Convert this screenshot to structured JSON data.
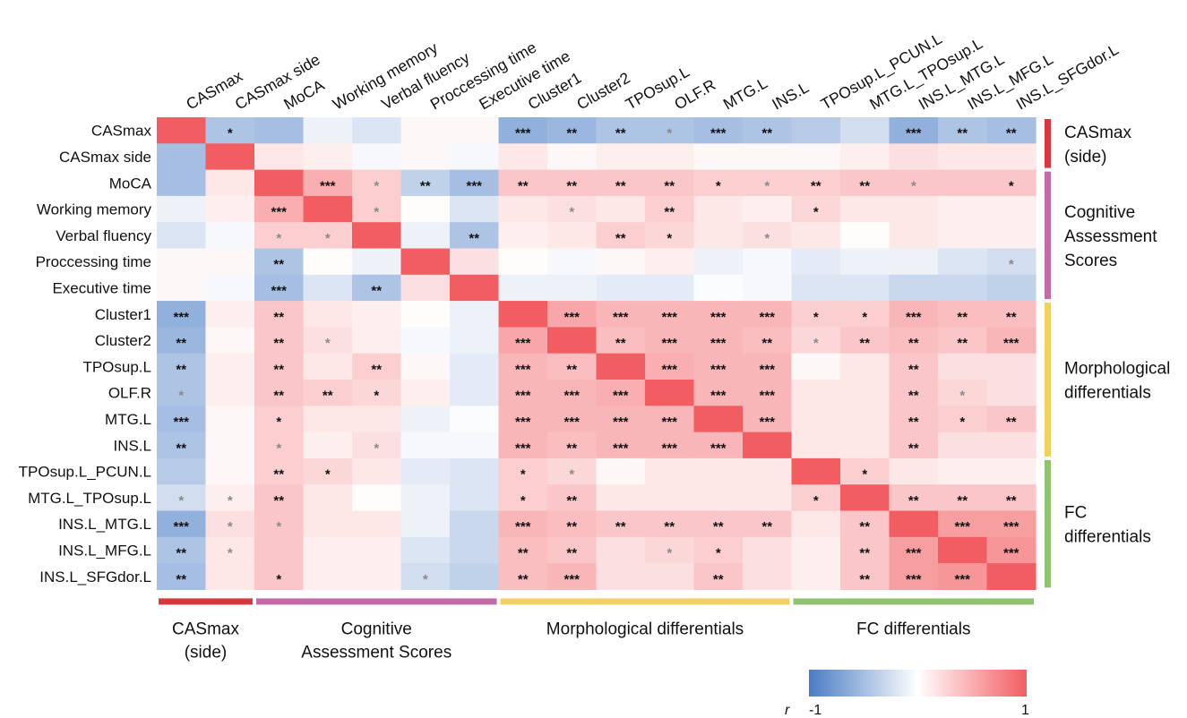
{
  "chart_data": {
    "type": "heatmap",
    "title": "",
    "variables": [
      "CASmax",
      "CASmax side",
      "MoCA",
      "Working memory",
      "Verbal fluency",
      "Proccessing time",
      "Executive time",
      "Cluster1",
      "Cluster2",
      "TPOsup.L",
      "OLF.R",
      "MTG.L",
      "INS.L",
      "TPOsup.L_PCUN.L",
      "MTG.L_TPOsup.L",
      "INS.L_MTG.L",
      "INS.L_MFG.L",
      "INS.L_SFGdor.L"
    ],
    "row_labels": [
      "CASmax",
      "CASmax side",
      "MoCA",
      "Working memory",
      "Verbal fluency",
      "Proccessing time",
      "Executive time",
      "Cluster1",
      "Cluster2",
      "TPOsup.L",
      "OLF.R",
      "MTG.L",
      "INS.L",
      "TPOsup.L_PCUN.L",
      "MTG.L_TPOsup.L",
      "INS.L_MTG.L",
      "INS.L_MFG.L",
      "INS.L_SFGdor.L"
    ],
    "values": [
      [
        1.0,
        -0.45,
        -0.5,
        -0.1,
        -0.2,
        0.05,
        0.05,
        -0.6,
        -0.55,
        -0.45,
        -0.45,
        -0.5,
        -0.45,
        -0.4,
        -0.25,
        -0.6,
        -0.45,
        -0.5
      ],
      [
        -0.5,
        1.0,
        0.15,
        0.1,
        -0.05,
        0.05,
        -0.05,
        0.15,
        0.05,
        0.1,
        0.1,
        0.05,
        0.05,
        0.05,
        0.1,
        0.2,
        0.15,
        0.15
      ],
      [
        -0.5,
        0.15,
        1.0,
        0.5,
        0.3,
        -0.35,
        -0.5,
        0.35,
        0.35,
        0.35,
        0.35,
        0.3,
        0.3,
        0.3,
        0.35,
        0.35,
        0.35,
        0.35
      ],
      [
        -0.1,
        0.1,
        0.5,
        1.0,
        0.3,
        0.02,
        -0.2,
        0.15,
        0.2,
        0.15,
        0.3,
        0.15,
        0.1,
        0.25,
        0.15,
        0.15,
        0.1,
        0.1
      ],
      [
        -0.2,
        -0.05,
        0.3,
        0.3,
        1.0,
        -0.1,
        -0.45,
        0.1,
        0.15,
        0.3,
        0.25,
        0.15,
        0.2,
        0.15,
        0.02,
        0.15,
        0.1,
        0.1
      ],
      [
        0.05,
        0.05,
        -0.45,
        0.02,
        -0.1,
        1.0,
        0.2,
        0.02,
        -0.05,
        0.05,
        0.1,
        -0.1,
        -0.05,
        -0.15,
        -0.1,
        -0.1,
        -0.2,
        -0.25
      ],
      [
        0.05,
        -0.05,
        -0.5,
        -0.2,
        -0.45,
        0.2,
        1.0,
        -0.1,
        -0.1,
        -0.15,
        -0.15,
        -0.02,
        -0.05,
        -0.2,
        -0.2,
        -0.3,
        -0.3,
        -0.35
      ],
      [
        -0.6,
        0.1,
        0.35,
        0.15,
        0.1,
        0.02,
        -0.1,
        1.0,
        0.55,
        0.45,
        0.45,
        0.45,
        0.45,
        0.3,
        0.3,
        0.45,
        0.4,
        0.4
      ],
      [
        -0.55,
        0.05,
        0.35,
        0.2,
        0.1,
        -0.05,
        -0.1,
        0.55,
        1.0,
        0.4,
        0.45,
        0.45,
        0.4,
        0.25,
        0.35,
        0.4,
        0.35,
        0.45
      ],
      [
        -0.45,
        0.1,
        0.35,
        0.15,
        0.3,
        0.05,
        -0.15,
        0.45,
        0.4,
        1.0,
        0.5,
        0.45,
        0.45,
        0.05,
        0.15,
        0.35,
        0.2,
        0.2
      ],
      [
        -0.45,
        0.1,
        0.35,
        0.3,
        0.25,
        0.1,
        -0.15,
        0.45,
        0.45,
        0.5,
        1.0,
        0.45,
        0.45,
        0.15,
        0.15,
        0.35,
        0.25,
        0.2
      ],
      [
        -0.5,
        0.05,
        0.3,
        0.15,
        0.15,
        -0.1,
        -0.02,
        0.45,
        0.45,
        0.45,
        0.45,
        1.0,
        0.45,
        0.15,
        0.15,
        0.35,
        0.3,
        0.35
      ],
      [
        -0.45,
        0.05,
        0.3,
        0.1,
        0.2,
        -0.05,
        -0.05,
        0.45,
        0.4,
        0.45,
        0.45,
        0.45,
        1.0,
        0.15,
        0.15,
        0.35,
        0.2,
        0.2
      ],
      [
        -0.4,
        0.05,
        0.3,
        0.25,
        0.15,
        -0.15,
        -0.2,
        0.3,
        0.25,
        0.05,
        0.15,
        0.15,
        0.15,
        1.0,
        0.3,
        0.15,
        0.1,
        0.1
      ],
      [
        -0.25,
        0.1,
        0.35,
        0.15,
        0.02,
        -0.1,
        -0.2,
        0.3,
        0.35,
        0.15,
        0.15,
        0.15,
        0.15,
        0.3,
        1.0,
        0.35,
        0.35,
        0.35
      ],
      [
        -0.6,
        0.2,
        0.35,
        0.15,
        0.15,
        -0.1,
        -0.3,
        0.45,
        0.4,
        0.35,
        0.35,
        0.35,
        0.35,
        0.15,
        0.35,
        1.0,
        0.6,
        0.6
      ],
      [
        -0.45,
        0.15,
        0.35,
        0.1,
        0.1,
        -0.2,
        -0.3,
        0.4,
        0.35,
        0.2,
        0.25,
        0.3,
        0.2,
        0.1,
        0.35,
        0.6,
        1.0,
        0.65
      ],
      [
        -0.5,
        0.15,
        0.35,
        0.1,
        0.1,
        -0.25,
        -0.35,
        0.4,
        0.45,
        0.2,
        0.2,
        0.35,
        0.2,
        0.1,
        0.35,
        0.6,
        0.65,
        1.0
      ]
    ],
    "significance": [
      [
        "",
        "*",
        "",
        "",
        "",
        "",
        "",
        "***",
        "**",
        "**",
        "*",
        "***",
        "**",
        "",
        "",
        "***",
        "**",
        "**"
      ],
      [
        "",
        "",
        "",
        "",
        "",
        "",
        "",
        "",
        "",
        "",
        "",
        "",
        "",
        "",
        "",
        "",
        "",
        ""
      ],
      [
        "",
        "",
        "",
        "***",
        "*",
        "**",
        "***",
        "**",
        "**",
        "**",
        "**",
        "*",
        "*",
        "**",
        "**",
        "*",
        "",
        "*"
      ],
      [
        "",
        "",
        "***",
        "",
        "*",
        "",
        "",
        "",
        "*",
        "",
        "**",
        "",
        "",
        "*",
        "",
        "",
        "",
        ""
      ],
      [
        "",
        "",
        "*",
        "*",
        "",
        "",
        "**",
        "",
        "",
        "**",
        "*",
        "",
        "*",
        "",
        "",
        "",
        "",
        ""
      ],
      [
        "",
        "",
        "**",
        "",
        "",
        "",
        "",
        "",
        "",
        "",
        "",
        "",
        "",
        "",
        "",
        "",
        "",
        "*"
      ],
      [
        "",
        "",
        "***",
        "",
        "**",
        "",
        "",
        "",
        "",
        "",
        "",
        "",
        "",
        "",
        "",
        "",
        "",
        ""
      ],
      [
        "***",
        "",
        "**",
        "",
        "",
        "",
        "",
        "",
        "***",
        "***",
        "***",
        "***",
        "***",
        "*",
        "*",
        "***",
        "**",
        "**"
      ],
      [
        "**",
        "",
        "**",
        "*",
        "",
        "",
        "",
        "***",
        "",
        "**",
        "***",
        "***",
        "**",
        "*",
        "**",
        "**",
        "**",
        "***"
      ],
      [
        "**",
        "",
        "**",
        "",
        "**",
        "",
        "",
        "***",
        "**",
        "",
        "***",
        "***",
        "***",
        "",
        "",
        "**",
        "",
        ""
      ],
      [
        "*",
        "",
        "**",
        "**",
        "*",
        "",
        "",
        "***",
        "***",
        "***",
        "",
        "***",
        "***",
        "",
        "",
        "**",
        "*",
        ""
      ],
      [
        "***",
        "",
        "*",
        "",
        "",
        "",
        "",
        "***",
        "***",
        "***",
        "***",
        "",
        "***",
        "",
        "",
        "**",
        "*",
        "**"
      ],
      [
        "**",
        "",
        "*",
        "",
        "*",
        "",
        "",
        "***",
        "**",
        "***",
        "***",
        "***",
        "",
        "",
        "",
        "**",
        "",
        ""
      ],
      [
        "",
        "",
        "**",
        "*",
        "",
        "",
        "",
        "*",
        "*",
        "",
        "",
        "",
        "",
        "",
        "*",
        "",
        "",
        ""
      ],
      [
        "*",
        "*",
        "**",
        "",
        "",
        "",
        "",
        "*",
        "**",
        "",
        "",
        "",
        "",
        "*",
        "",
        "**",
        "**",
        "**"
      ],
      [
        "***",
        "*",
        "*",
        "",
        "",
        "",
        "",
        "***",
        "**",
        "**",
        "**",
        "**",
        "**",
        "",
        "**",
        "",
        "***",
        "***"
      ],
      [
        "**",
        "*",
        "",
        "",
        "",
        "",
        "",
        "**",
        "**",
        "",
        "*",
        "*",
        "",
        "",
        "**",
        "***",
        "",
        "***"
      ],
      [
        "**",
        "",
        "*",
        "",
        "",
        "*",
        "",
        "**",
        "***",
        "",
        "",
        "**",
        "",
        "",
        "**",
        "***",
        "***",
        ""
      ]
    ],
    "significance_gray": [
      [
        0,
        0,
        0,
        0,
        0,
        0,
        0,
        0,
        0,
        0,
        1,
        0,
        0,
        0,
        1,
        0,
        0,
        0
      ],
      [
        0,
        0,
        0,
        0,
        0,
        0,
        0,
        0,
        0,
        0,
        0,
        0,
        0,
        0,
        0,
        0,
        0,
        0
      ],
      [
        0,
        0,
        0,
        0,
        1,
        0,
        0,
        0,
        0,
        0,
        0,
        0,
        1,
        0,
        0,
        1,
        0,
        0
      ],
      [
        0,
        0,
        0,
        0,
        1,
        0,
        0,
        0,
        1,
        0,
        0,
        0,
        0,
        0,
        0,
        0,
        0,
        0
      ],
      [
        0,
        0,
        1,
        1,
        0,
        0,
        0,
        0,
        0,
        0,
        0,
        0,
        1,
        0,
        0,
        0,
        0,
        0
      ],
      [
        0,
        0,
        0,
        0,
        0,
        0,
        0,
        0,
        0,
        0,
        0,
        0,
        0,
        0,
        0,
        0,
        0,
        1
      ],
      [
        0,
        0,
        0,
        0,
        0,
        0,
        0,
        0,
        0,
        0,
        0,
        0,
        0,
        0,
        0,
        0,
        0,
        0
      ],
      [
        0,
        0,
        0,
        0,
        0,
        0,
        0,
        0,
        0,
        0,
        0,
        0,
        0,
        0,
        0,
        0,
        0,
        0
      ],
      [
        0,
        0,
        0,
        1,
        0,
        0,
        0,
        0,
        0,
        0,
        0,
        0,
        0,
        1,
        0,
        0,
        0,
        0
      ],
      [
        0,
        0,
        0,
        0,
        0,
        0,
        0,
        0,
        0,
        0,
        0,
        0,
        0,
        0,
        0,
        0,
        0,
        0
      ],
      [
        1,
        0,
        0,
        0,
        0,
        0,
        0,
        0,
        0,
        0,
        0,
        0,
        0,
        0,
        0,
        0,
        1,
        0
      ],
      [
        0,
        0,
        0,
        0,
        0,
        0,
        0,
        0,
        0,
        0,
        0,
        0,
        0,
        0,
        0,
        0,
        0,
        0
      ],
      [
        0,
        0,
        1,
        0,
        1,
        0,
        0,
        0,
        0,
        0,
        0,
        0,
        0,
        0,
        0,
        0,
        0,
        0
      ],
      [
        0,
        0,
        0,
        0,
        0,
        0,
        0,
        0,
        1,
        0,
        0,
        0,
        0,
        0,
        0,
        0,
        0,
        0
      ],
      [
        1,
        1,
        0,
        0,
        0,
        0,
        0,
        0,
        0,
        0,
        0,
        0,
        0,
        0,
        0,
        0,
        0,
        0
      ],
      [
        0,
        1,
        1,
        0,
        0,
        0,
        0,
        0,
        0,
        0,
        0,
        0,
        0,
        0,
        0,
        0,
        0,
        0
      ],
      [
        0,
        1,
        0,
        0,
        0,
        0,
        0,
        0,
        0,
        0,
        1,
        0,
        0,
        0,
        0,
        0,
        0,
        0
      ],
      [
        0,
        0,
        0,
        0,
        0,
        1,
        0,
        0,
        0,
        0,
        0,
        0,
        0,
        0,
        0,
        0,
        0,
        0
      ]
    ],
    "groups": [
      {
        "name": "CASmax (side)",
        "label_lines": [
          "CASmax",
          "(side)"
        ],
        "start": 0,
        "end": 1,
        "color": "#d9363e"
      },
      {
        "name": "Cognitive Assessment Scores",
        "label_lines": [
          "Cognitive",
          "Assessment Scores"
        ],
        "right_label_lines": [
          "Cognitive",
          "Assessment",
          "Scores"
        ],
        "start": 2,
        "end": 6,
        "color": "#c46aa6"
      },
      {
        "name": "Morphological differentials",
        "label_lines": [
          "Morphological differentials"
        ],
        "right_label_lines": [
          "Morphological",
          "differentials"
        ],
        "start": 7,
        "end": 12,
        "color": "#f0d060"
      },
      {
        "name": "FC differentials",
        "label_lines": [
          "FC differentials"
        ],
        "right_label_lines": [
          "FC",
          "differentials"
        ],
        "start": 13,
        "end": 17,
        "color": "#8fc370"
      }
    ],
    "colorscale": {
      "low": "#4a7cc4",
      "mid": "#ffffff",
      "high": "#f25d62",
      "min": -1,
      "max": 1
    },
    "legend": {
      "variable": "r",
      "min_label": "-1",
      "max_label": "1",
      "position": "bottom-right"
    }
  }
}
